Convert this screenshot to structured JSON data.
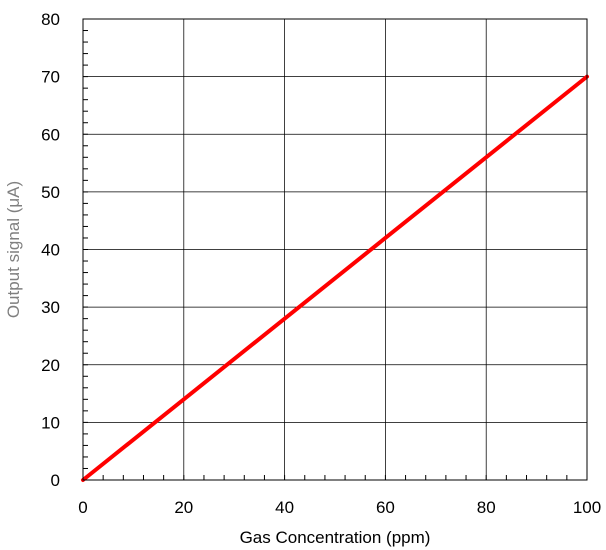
{
  "chart_data": {
    "type": "line",
    "title": "",
    "xlabel": "Gas Concentration (ppm)",
    "ylabel": "Output signal (μA)",
    "xlim": [
      0,
      100
    ],
    "ylim": [
      0,
      80
    ],
    "x_ticks": [
      0,
      20,
      40,
      60,
      80,
      100
    ],
    "y_ticks": [
      0,
      10,
      20,
      30,
      40,
      50,
      60,
      70,
      80
    ],
    "grid": true,
    "legend": "none",
    "series": [
      {
        "x": [
          0,
          100
        ],
        "y": [
          0,
          70
        ],
        "color": "#ff0000"
      }
    ]
  },
  "colors": {
    "line": "#ff0000",
    "grid": "#000000",
    "ylabel": "#7f7f7f",
    "xlabel": "#000000"
  }
}
